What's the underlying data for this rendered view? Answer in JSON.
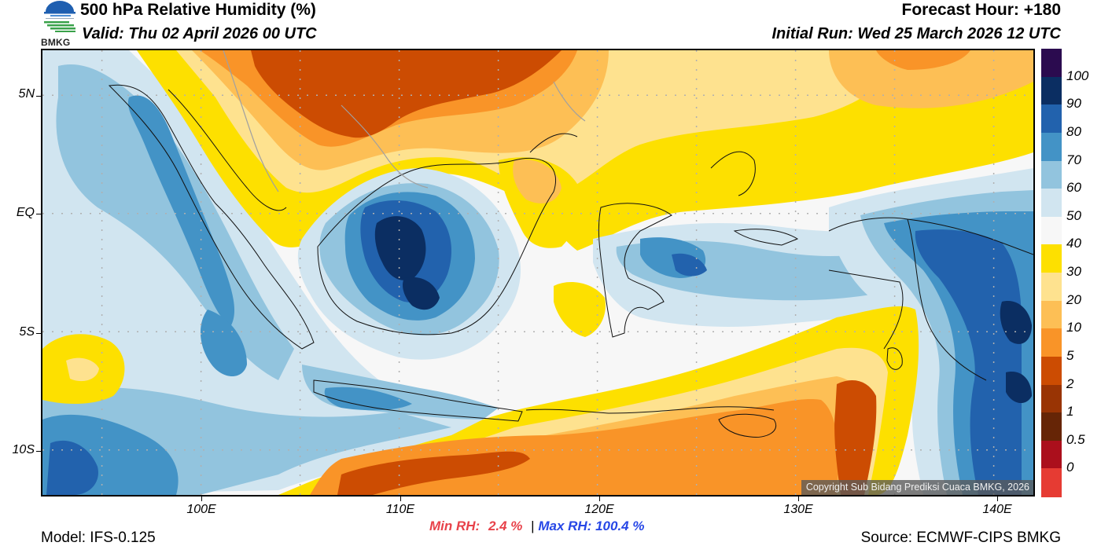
{
  "header": {
    "title": "500 hPa Relative Humidity (%)",
    "valid": "Valid: Thu 02 April 2026 00 UTC",
    "forecast_hour": "Forecast Hour: +180",
    "initial_run": "Initial Run: Wed 25 March 2026 12 UTC",
    "logo_text": "BMKG",
    "logo_icon": "bmkg-logo-icon"
  },
  "map": {
    "lat_labels": [
      "5N",
      "EQ",
      "5S",
      "10S"
    ],
    "lon_labels": [
      "100E",
      "110E",
      "120E",
      "130E",
      "140E"
    ],
    "copyright": "Copyright Sub Bidang Prediksi Cuaca BMKG, 2026",
    "extent": {
      "lon_min": 92,
      "lon_max": 142,
      "lat_min": -11.9,
      "lat_max": 6.9
    }
  },
  "colorbar": {
    "labels": [
      "100",
      "90",
      "80",
      "70",
      "60",
      "50",
      "40",
      "30",
      "20",
      "10",
      "5",
      "2",
      "1",
      "0.5",
      "0"
    ],
    "bands": [
      {
        "color": "#2b0b4f"
      },
      {
        "color": "#0b2e62"
      },
      {
        "color": "#2262ad"
      },
      {
        "color": "#4393c6"
      },
      {
        "color": "#92c4de"
      },
      {
        "color": "#d1e5f0"
      },
      {
        "color": "#f7f7f7"
      },
      {
        "color": "#fde000"
      },
      {
        "color": "#fee28f"
      },
      {
        "color": "#fdbf55"
      },
      {
        "color": "#f99428"
      },
      {
        "color": "#cc4c02"
      },
      {
        "color": "#993404"
      },
      {
        "color": "#662506"
      },
      {
        "color": "#ab0f1c"
      },
      {
        "color": "#e63b33"
      }
    ]
  },
  "footer": {
    "model": "Model: IFS-0.125",
    "min_rh_label": "Min RH:",
    "min_rh_value": "2.4 %",
    "separator": "|",
    "max_rh_label": "Max RH:",
    "max_rh_value": "100.4 %",
    "source": "Source: ECMWF-CIPS BMKG"
  },
  "colors": {
    "min_rh": "#e8424a",
    "max_rh": "#2747e6",
    "coastline": "#111111",
    "grid": "#b0b0b0"
  }
}
